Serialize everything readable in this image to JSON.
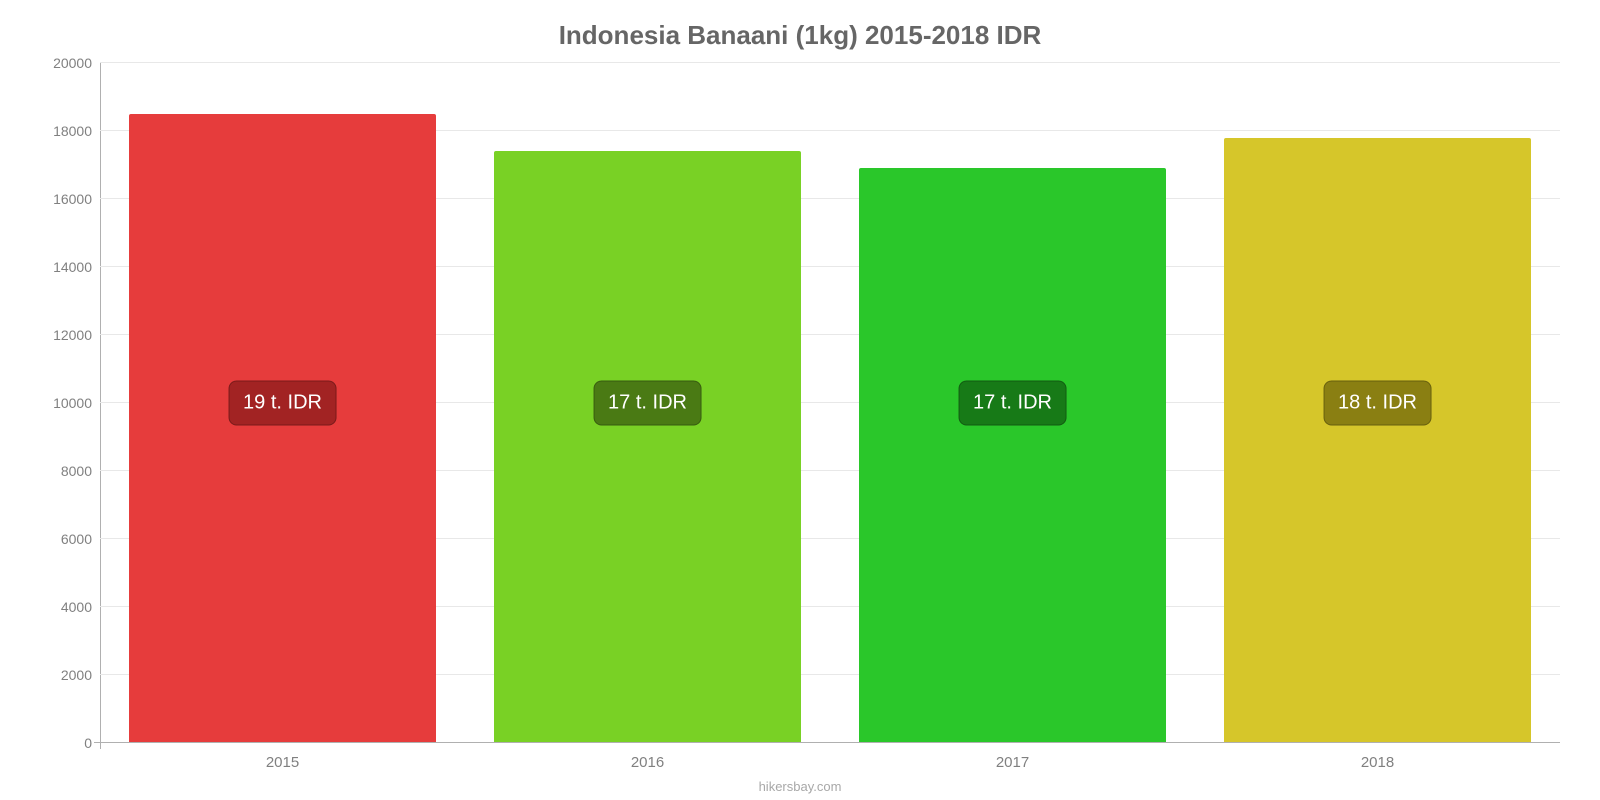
{
  "chart": {
    "type": "bar",
    "title": "Indonesia Banaani (1kg) 2015-2018 IDR",
    "title_color": "#666666",
    "title_fontsize": 26,
    "background_color": "#ffffff",
    "grid_color": "#e8e8e8",
    "axis_line_color": "#b0b0b0",
    "tick_label_color": "#808080",
    "tick_fontsize": 14,
    "x_label_fontsize": 15,
    "source_text": "hikersbay.com",
    "source_color": "#a8a8a8",
    "ylim": [
      0,
      20000
    ],
    "ytick_step": 2000,
    "yticks": [
      0,
      2000,
      4000,
      6000,
      8000,
      10000,
      12000,
      14000,
      16000,
      18000,
      20000
    ],
    "bar_width_pct": 84,
    "badge_fontsize": 20,
    "badge_text_color": "#ffffff",
    "badge_center_value": 10000,
    "categories": [
      "2015",
      "2016",
      "2017",
      "2018"
    ],
    "values": [
      18500,
      17400,
      16900,
      17800
    ],
    "bar_colors": [
      "#e63c3c",
      "#79d125",
      "#2ac72a",
      "#d6c62a"
    ],
    "badge_colors": [
      "#a22323",
      "#4a7a14",
      "#177a17",
      "#8a7f12"
    ],
    "badge_labels": [
      "19 t. IDR",
      "17 t. IDR",
      "17 t. IDR",
      "18 t. IDR"
    ]
  }
}
